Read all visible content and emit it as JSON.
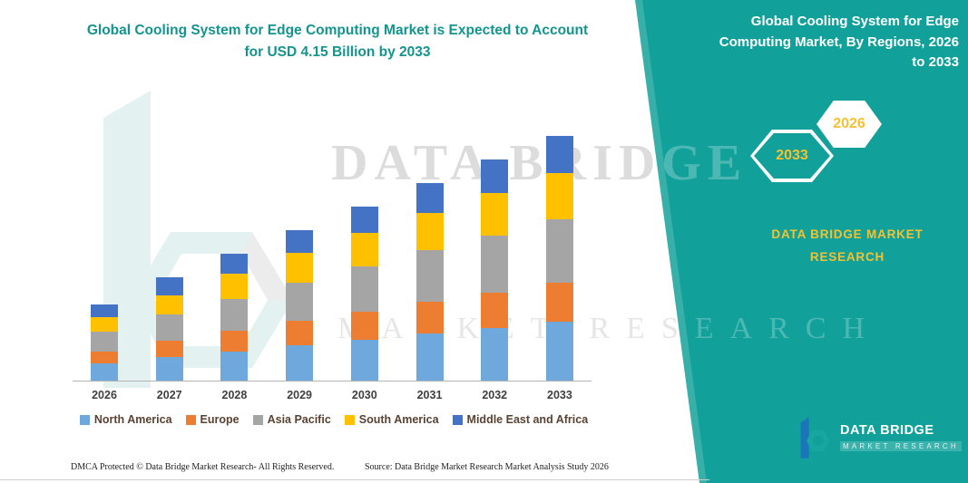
{
  "title": {
    "line1": "Global Cooling System for Edge Computing Market is Expected to Account",
    "line2": "for USD 4.15 Billion by 2033"
  },
  "chart_data": {
    "type": "bar",
    "stacked": true,
    "title": "Global Cooling System for Edge Computing Market is Expected to Account for USD 4.15 Billion by 2033",
    "unit": "USD Billion",
    "categories": [
      "2026",
      "2027",
      "2028",
      "2029",
      "2030",
      "2031",
      "2032",
      "2033"
    ],
    "series": [
      {
        "name": "North America",
        "color": "#6FA8DC",
        "values": [
          0.3,
          0.4,
          0.5,
          0.6,
          0.7,
          0.8,
          0.9,
          1.0
        ]
      },
      {
        "name": "Europe",
        "color": "#ED7D31",
        "values": [
          0.2,
          0.27,
          0.34,
          0.41,
          0.47,
          0.54,
          0.6,
          0.66
        ]
      },
      {
        "name": "Asia Pacific",
        "color": "#A5A5A5",
        "values": [
          0.33,
          0.45,
          0.55,
          0.66,
          0.77,
          0.87,
          0.97,
          1.08
        ]
      },
      {
        "name": "South America",
        "color": "#FFC000",
        "values": [
          0.25,
          0.33,
          0.42,
          0.5,
          0.57,
          0.64,
          0.72,
          0.79
        ]
      },
      {
        "name": "Middle East and Africa",
        "color": "#4472C4",
        "values": [
          0.22,
          0.3,
          0.34,
          0.38,
          0.44,
          0.5,
          0.56,
          0.62
        ]
      }
    ],
    "totals": [
      1.3,
      1.75,
      2.15,
      2.55,
      2.95,
      3.35,
      3.75,
      4.15
    ],
    "xlabel": "",
    "ylabel": "",
    "y_axis_visible": false,
    "grid": false,
    "legend_position": "bottom"
  },
  "side_panel": {
    "title_lines": [
      "Global Cooling System for Edge",
      "Computing Market, By Regions, 2026",
      "to 2033"
    ],
    "badge_2033": "2033",
    "badge_2026": "2026",
    "brand_line1": "DATA BRIDGE MARKET",
    "brand_line2": "RESEARCH"
  },
  "watermark": {
    "line1": "DATA BRIDGE",
    "line2": "MARKET RESEARCH"
  },
  "logo": {
    "text": "DATA BRIDGE",
    "subtext": "MARKET RESEARCH"
  },
  "footer": {
    "dmca": "DMCA Protected © Data Bridge Market Research-  All Rights Reserved.",
    "source": "Source: Data Bridge Market Research  Market Analysis Study 2026"
  },
  "colors": {
    "teal": "#12A19A",
    "accent_yellow": "#F2C230",
    "title_teal": "#13948F"
  }
}
